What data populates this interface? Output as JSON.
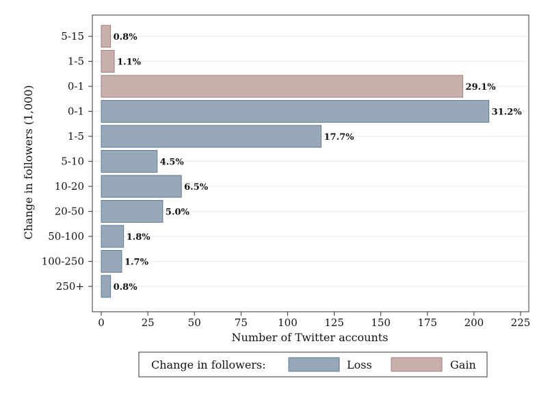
{
  "chart_data": {
    "type": "bar",
    "orientation": "horizontal",
    "xlabel": "Number of Twitter accounts",
    "ylabel": "Change in followers (1,000)",
    "xlim": [
      0,
      225
    ],
    "xticks": [
      0,
      25,
      50,
      75,
      100,
      125,
      150,
      175,
      200,
      225
    ],
    "grid": true,
    "legend_position": "bottom",
    "legend_title": "Change in followers:",
    "series": [
      {
        "name": "Loss",
        "color": "#97a8b8"
      },
      {
        "name": "Gain",
        "color": "#c9afac"
      }
    ],
    "bars": [
      {
        "category": "5-15",
        "series": "Gain",
        "value": 5,
        "label": "0.8%"
      },
      {
        "category": "1-5",
        "series": "Gain",
        "value": 7,
        "label": "1.1%"
      },
      {
        "category": "0-1",
        "series": "Gain",
        "value": 194,
        "label": "29.1%"
      },
      {
        "category": "0-1",
        "series": "Loss",
        "value": 208,
        "label": "31.2%"
      },
      {
        "category": "1-5",
        "series": "Loss",
        "value": 118,
        "label": "17.7%"
      },
      {
        "category": "5-10",
        "series": "Loss",
        "value": 30,
        "label": "4.5%"
      },
      {
        "category": "10-20",
        "series": "Loss",
        "value": 43,
        "label": "6.5%"
      },
      {
        "category": "20-50",
        "series": "Loss",
        "value": 33,
        "label": "5.0%"
      },
      {
        "category": "50-100",
        "series": "Loss",
        "value": 12,
        "label": "1.8%"
      },
      {
        "category": "100-250",
        "series": "Loss",
        "value": 11,
        "label": "1.7%"
      },
      {
        "category": "250+",
        "series": "Loss",
        "value": 5,
        "label": "0.8%"
      }
    ]
  },
  "colors": {
    "loss": "#97a8b8",
    "gain": "#c9afac",
    "bar_stroke_loss": "#5f7a94",
    "bar_stroke_gain": "#9f7f7b",
    "grid": "#eaf0f4",
    "axis": "#333333"
  }
}
